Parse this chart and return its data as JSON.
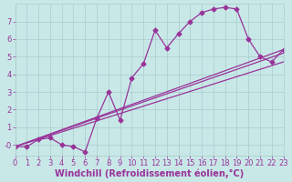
{
  "background_color": "#c8e8e8",
  "line_color": "#993399",
  "grid_color": "#aacccc",
  "xlabel": "Windchill (Refroidissement éolien,°C)",
  "xlabel_fontsize": 7,
  "tick_fontsize": 6,
  "tick_color": "#993399",
  "label_color": "#993399",
  "xlim": [
    0,
    23
  ],
  "ylim": [
    -0.6,
    8.0
  ],
  "yticks": [
    0,
    1,
    2,
    3,
    4,
    5,
    6,
    7
  ],
  "ytick_labels": [
    "-0",
    "1",
    "2",
    "3",
    "4",
    "5",
    "6",
    "7"
  ],
  "xticks": [
    0,
    1,
    2,
    3,
    4,
    5,
    6,
    7,
    8,
    9,
    10,
    11,
    12,
    13,
    14,
    15,
    16,
    17,
    18,
    19,
    20,
    21,
    22,
    23
  ],
  "line1_x": [
    0,
    1,
    2,
    3,
    4,
    5,
    6,
    7,
    8,
    9,
    10,
    11,
    12,
    13,
    14,
    15,
    16,
    17,
    18,
    19,
    20,
    21,
    22,
    23
  ],
  "line1_y": [
    -0.1,
    -0.1,
    0.3,
    0.4,
    0.0,
    -0.1,
    -0.4,
    1.5,
    3.0,
    1.4,
    3.8,
    4.6,
    6.5,
    5.5,
    6.3,
    7.0,
    7.5,
    7.7,
    7.8,
    7.7,
    6.0,
    5.0,
    4.7,
    5.4
  ],
  "line2_x": [
    0,
    23
  ],
  "line2_y": [
    -0.1,
    4.7
  ],
  "line3_x": [
    0,
    23
  ],
  "line3_y": [
    -0.1,
    5.2
  ],
  "line4_x": [
    0,
    23
  ],
  "line4_y": [
    -0.1,
    5.4
  ]
}
